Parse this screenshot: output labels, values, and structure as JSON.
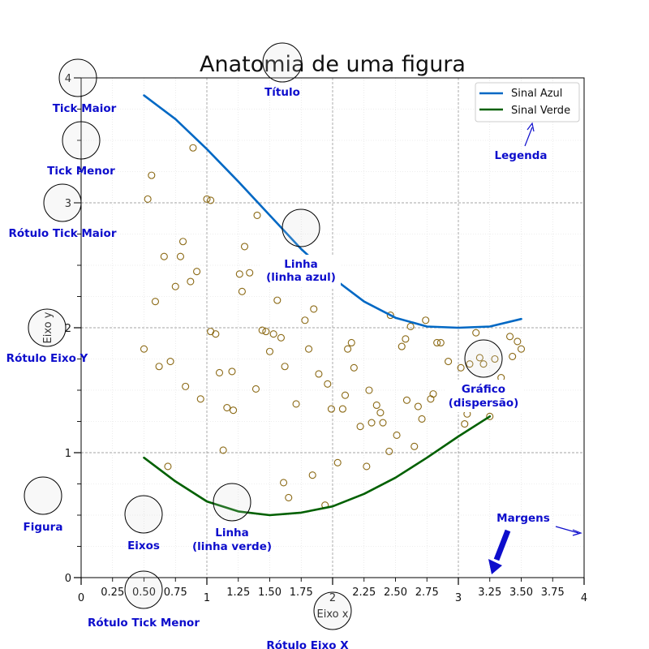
{
  "chart_data": {
    "type": "line",
    "title": "Anatomia de uma figura",
    "xlabel": "Eixo x",
    "ylabel": "Eixo y",
    "xlim": [
      0,
      4
    ],
    "ylim": [
      0,
      4
    ],
    "x_major_ticks": [
      "0",
      "1",
      "2",
      "3",
      "4"
    ],
    "x_minor_ticks": [
      "0.25",
      "0.50",
      "0.75",
      "1.25",
      "1.50",
      "1.75",
      "2.25",
      "2.50",
      "2.75",
      "3.25",
      "3.50",
      "3.75"
    ],
    "y_major_ticks": [
      "0",
      "1",
      "2",
      "3",
      "4"
    ],
    "grid": "major dashed, minor dotted",
    "legend_position": "top-right",
    "series": [
      {
        "name": "Sinal Azul",
        "color": "#0068c4",
        "x": [
          0.5,
          0.75,
          1.0,
          1.25,
          1.5,
          1.75,
          2.0,
          2.25,
          2.5,
          2.75,
          3.0,
          3.25,
          3.5
        ],
        "y": [
          3.86,
          3.67,
          3.43,
          3.17,
          2.9,
          2.63,
          2.4,
          2.21,
          2.08,
          2.01,
          2.0,
          2.01,
          2.07
        ]
      },
      {
        "name": "Sinal Verde",
        "color": "#006000",
        "x": [
          0.5,
          0.75,
          1.0,
          1.25,
          1.5,
          1.75,
          2.0,
          2.25,
          2.5,
          2.75,
          3.0,
          3.25
        ],
        "y": [
          0.96,
          0.77,
          0.61,
          0.53,
          0.5,
          0.52,
          0.57,
          0.67,
          0.8,
          0.96,
          1.13,
          1.29
        ]
      },
      {
        "name": "",
        "type": "scatter",
        "color": "#8b6914",
        "points": [
          [
            0.89,
            3.44
          ],
          [
            0.56,
            3.22
          ],
          [
            0.53,
            3.03
          ],
          [
            1.0,
            3.03
          ],
          [
            1.03,
            3.02
          ],
          [
            1.4,
            2.9
          ],
          [
            0.81,
            2.69
          ],
          [
            1.3,
            2.65
          ],
          [
            0.66,
            2.57
          ],
          [
            0.79,
            2.57
          ],
          [
            1.26,
            2.43
          ],
          [
            1.34,
            2.44
          ],
          [
            0.75,
            2.33
          ],
          [
            0.87,
            2.37
          ],
          [
            0.92,
            2.45
          ],
          [
            1.28,
            2.29
          ],
          [
            0.59,
            2.21
          ],
          [
            1.56,
            2.22
          ],
          [
            1.85,
            2.15
          ],
          [
            1.78,
            2.06
          ],
          [
            1.44,
            1.98
          ],
          [
            1.47,
            1.97
          ],
          [
            1.53,
            1.95
          ],
          [
            1.59,
            1.92
          ],
          [
            1.03,
            1.97
          ],
          [
            1.07,
            1.95
          ],
          [
            0.5,
            1.83
          ],
          [
            1.5,
            1.81
          ],
          [
            1.81,
            1.83
          ],
          [
            2.15,
            1.88
          ],
          [
            2.12,
            1.83
          ],
          [
            2.46,
            2.1
          ],
          [
            2.58,
            1.91
          ],
          [
            2.62,
            2.01
          ],
          [
            2.74,
            2.06
          ],
          [
            2.83,
            1.88
          ],
          [
            2.86,
            1.88
          ],
          [
            2.55,
            1.85
          ],
          [
            3.14,
            1.96
          ],
          [
            3.41,
            1.93
          ],
          [
            3.47,
            1.89
          ],
          [
            3.5,
            1.83
          ],
          [
            0.62,
            1.69
          ],
          [
            0.71,
            1.73
          ],
          [
            1.1,
            1.64
          ],
          [
            1.2,
            1.65
          ],
          [
            1.62,
            1.69
          ],
          [
            1.89,
            1.63
          ],
          [
            1.96,
            1.55
          ],
          [
            2.17,
            1.68
          ],
          [
            2.92,
            1.73
          ],
          [
            3.02,
            1.68
          ],
          [
            3.09,
            1.71
          ],
          [
            3.17,
            1.76
          ],
          [
            3.2,
            1.71
          ],
          [
            3.29,
            1.75
          ],
          [
            3.43,
            1.77
          ],
          [
            0.83,
            1.53
          ],
          [
            0.95,
            1.43
          ],
          [
            1.16,
            1.36
          ],
          [
            1.21,
            1.34
          ],
          [
            1.39,
            1.51
          ],
          [
            1.71,
            1.39
          ],
          [
            1.99,
            1.35
          ],
          [
            2.08,
            1.35
          ],
          [
            2.1,
            1.46
          ],
          [
            2.29,
            1.5
          ],
          [
            2.35,
            1.38
          ],
          [
            2.38,
            1.32
          ],
          [
            2.4,
            1.24
          ],
          [
            2.31,
            1.24
          ],
          [
            2.22,
            1.21
          ],
          [
            2.51,
            1.14
          ],
          [
            2.59,
            1.42
          ],
          [
            2.68,
            1.37
          ],
          [
            2.71,
            1.27
          ],
          [
            2.78,
            1.43
          ],
          [
            2.8,
            1.47
          ],
          [
            3.05,
            1.23
          ],
          [
            3.07,
            1.31
          ],
          [
            3.25,
            1.29
          ],
          [
            3.34,
            1.6
          ],
          [
            1.13,
            1.02
          ],
          [
            2.45,
            1.01
          ],
          [
            2.65,
            1.05
          ],
          [
            2.04,
            0.92
          ],
          [
            2.27,
            0.89
          ],
          [
            0.69,
            0.89
          ],
          [
            1.84,
            0.82
          ],
          [
            1.61,
            0.76
          ],
          [
            1.65,
            0.64
          ],
          [
            1.94,
            0.58
          ]
        ]
      }
    ]
  },
  "annotations": {
    "title": "Título",
    "major_tick": "Tick Maior",
    "minor_tick": "Tick Menor",
    "major_tick_label": "Rótulo Tick Maior",
    "blue_line": [
      "Linha",
      "(linha azul)"
    ],
    "y_axis_label": "Rótulo Eixo Y",
    "scatter": [
      "Gráfico",
      "(dispersão)"
    ],
    "legend": "Legenda",
    "figure": "Figura",
    "axes": "Eixos",
    "green_line": [
      "Linha",
      "(linha verde)"
    ],
    "margins": "Margens",
    "minor_tick_label": "Rótulo Tick Menor",
    "x_axis_label": "Rótulo Eixo X"
  }
}
